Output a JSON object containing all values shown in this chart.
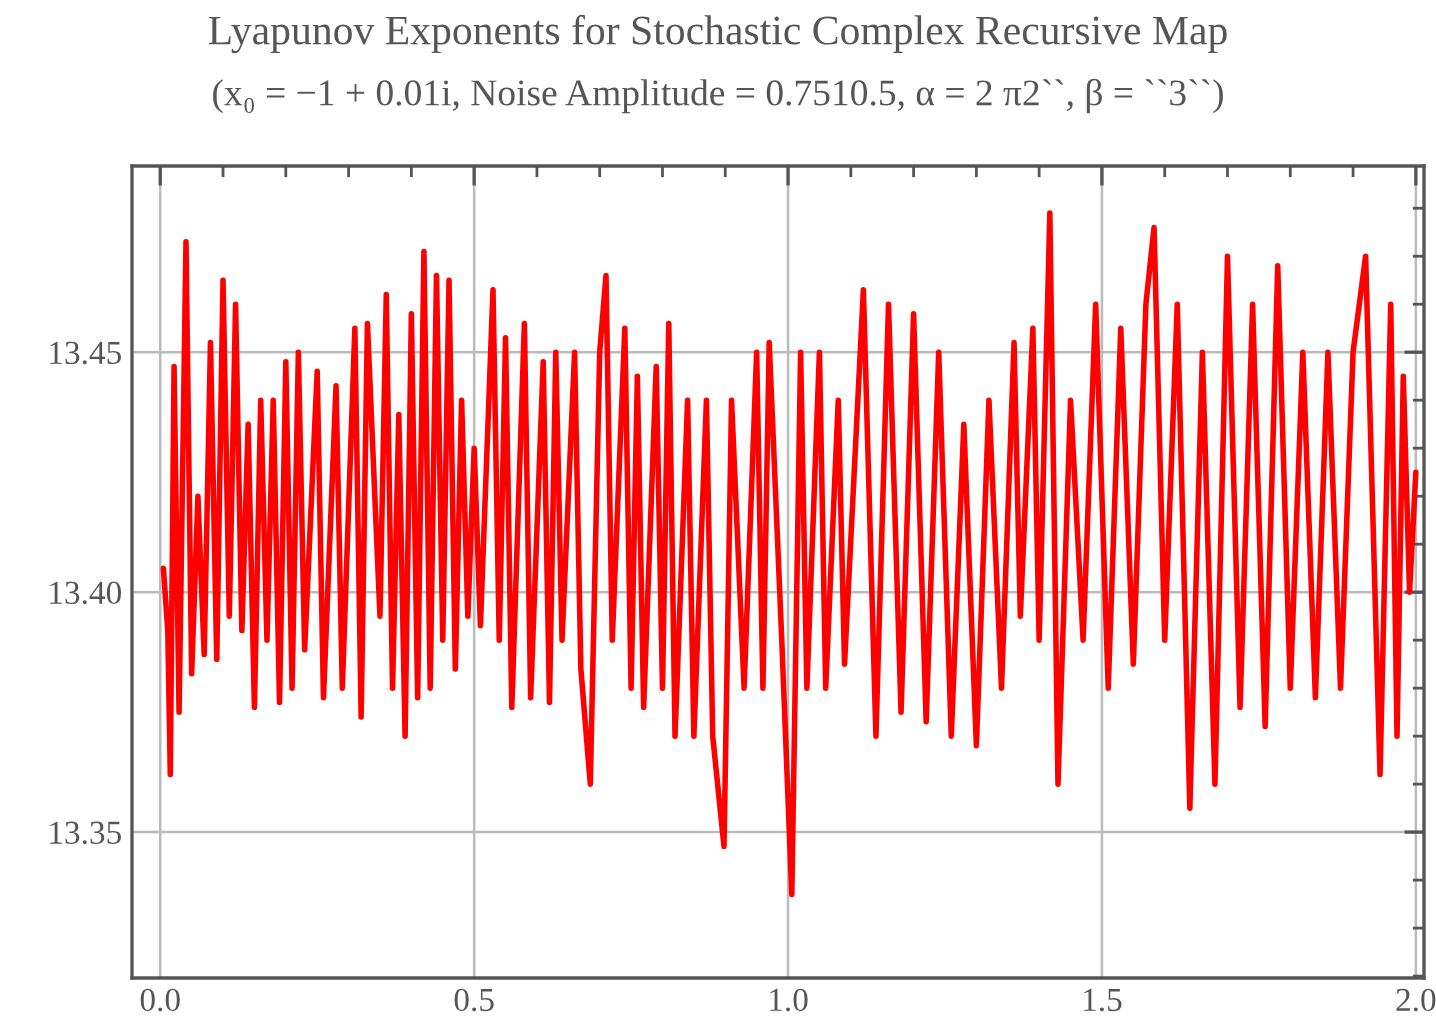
{
  "chart_data": {
    "type": "line",
    "title": "Lyapunov Exponents for Stochastic Complex Recursive Map",
    "subtitle": "(x₀ = −1 + 0.01i, Noise Amplitude = 0.7510.5, α = 2 π2``, β = ``3``)",
    "series": [
      {
        "color": "#ff0000",
        "x": [
          0.005,
          0.012,
          0.016,
          0.022,
          0.03,
          0.041,
          0.05,
          0.06,
          0.07,
          0.08,
          0.09,
          0.1,
          0.11,
          0.12,
          0.13,
          0.14,
          0.15,
          0.16,
          0.17,
          0.18,
          0.19,
          0.2,
          0.21,
          0.22,
          0.23,
          0.25,
          0.26,
          0.28,
          0.29,
          0.31,
          0.32,
          0.33,
          0.35,
          0.36,
          0.37,
          0.38,
          0.39,
          0.4,
          0.41,
          0.42,
          0.43,
          0.44,
          0.45,
          0.46,
          0.47,
          0.48,
          0.49,
          0.5,
          0.51,
          0.53,
          0.54,
          0.55,
          0.56,
          0.58,
          0.59,
          0.61,
          0.62,
          0.63,
          0.64,
          0.66,
          0.67,
          0.685,
          0.7,
          0.71,
          0.72,
          0.74,
          0.75,
          0.76,
          0.77,
          0.79,
          0.8,
          0.81,
          0.82,
          0.84,
          0.85,
          0.87,
          0.88,
          0.898,
          0.91,
          0.93,
          0.95,
          0.96,
          0.97,
          0.99,
          1.006,
          1.02,
          1.03,
          1.05,
          1.06,
          1.08,
          1.09,
          1.12,
          1.14,
          1.16,
          1.18,
          1.2,
          1.22,
          1.24,
          1.26,
          1.28,
          1.3,
          1.32,
          1.34,
          1.36,
          1.37,
          1.39,
          1.4,
          1.417,
          1.43,
          1.45,
          1.47,
          1.49,
          1.51,
          1.53,
          1.55,
          1.57,
          1.583,
          1.6,
          1.62,
          1.64,
          1.66,
          1.68,
          1.7,
          1.72,
          1.74,
          1.76,
          1.78,
          1.8,
          1.82,
          1.84,
          1.86,
          1.88,
          1.9,
          1.92,
          1.943,
          1.96,
          1.97,
          1.98,
          1.99,
          2.0
        ],
        "values": [
          13.405,
          13.392,
          13.362,
          13.447,
          13.375,
          13.473,
          13.383,
          13.42,
          13.387,
          13.452,
          13.386,
          13.465,
          13.395,
          13.46,
          13.392,
          13.435,
          13.376,
          13.44,
          13.39,
          13.44,
          13.377,
          13.448,
          13.38,
          13.45,
          13.388,
          13.446,
          13.378,
          13.443,
          13.38,
          13.455,
          13.374,
          13.456,
          13.395,
          13.462,
          13.38,
          13.437,
          13.37,
          13.458,
          13.378,
          13.471,
          13.38,
          13.466,
          13.39,
          13.465,
          13.384,
          13.44,
          13.395,
          13.43,
          13.393,
          13.463,
          13.39,
          13.453,
          13.376,
          13.456,
          13.378,
          13.448,
          13.377,
          13.45,
          13.39,
          13.45,
          13.384,
          13.36,
          13.45,
          13.466,
          13.39,
          13.455,
          13.38,
          13.445,
          13.376,
          13.447,
          13.38,
          13.456,
          13.37,
          13.44,
          13.37,
          13.44,
          13.37,
          13.347,
          13.44,
          13.38,
          13.45,
          13.38,
          13.452,
          13.39,
          13.337,
          13.45,
          13.38,
          13.45,
          13.38,
          13.44,
          13.385,
          13.463,
          13.37,
          13.46,
          13.375,
          13.458,
          13.373,
          13.45,
          13.37,
          13.435,
          13.368,
          13.44,
          13.38,
          13.452,
          13.395,
          13.455,
          13.39,
          13.479,
          13.36,
          13.44,
          13.39,
          13.46,
          13.38,
          13.455,
          13.385,
          13.46,
          13.476,
          13.39,
          13.46,
          13.355,
          13.45,
          13.36,
          13.47,
          13.376,
          13.46,
          13.372,
          13.468,
          13.38,
          13.45,
          13.378,
          13.45,
          13.38,
          13.45,
          13.47,
          13.362,
          13.46,
          13.37,
          13.445,
          13.4,
          13.425
        ]
      }
    ],
    "xlim": [
      -0.045,
      2.013
    ],
    "ylim": [
      13.3196,
      13.4888
    ],
    "xticks": [
      {
        "value": 0,
        "label": "0.0"
      },
      {
        "value": 0.1,
        "label": null
      },
      {
        "value": 0.2,
        "label": null
      },
      {
        "value": 0.3,
        "label": null
      },
      {
        "value": 0.4,
        "label": null
      },
      {
        "value": 0.5,
        "label": "0.5"
      },
      {
        "value": 0.6,
        "label": null
      },
      {
        "value": 0.7,
        "label": null
      },
      {
        "value": 0.8,
        "label": null
      },
      {
        "value": 0.9,
        "label": null
      },
      {
        "value": 1.0,
        "label": "1.0"
      },
      {
        "value": 1.1,
        "label": null
      },
      {
        "value": 1.2,
        "label": null
      },
      {
        "value": 1.3,
        "label": null
      },
      {
        "value": 1.4,
        "label": null
      },
      {
        "value": 1.5,
        "label": "1.5"
      },
      {
        "value": 1.6,
        "label": null
      },
      {
        "value": 1.7,
        "label": null
      },
      {
        "value": 1.8,
        "label": null
      },
      {
        "value": 1.9,
        "label": null
      },
      {
        "value": 2.0,
        "label": "2.0"
      }
    ],
    "yticks": [
      {
        "value": 13.32,
        "label": null
      },
      {
        "value": 13.33,
        "label": null
      },
      {
        "value": 13.34,
        "label": null
      },
      {
        "value": 13.35,
        "label": "13.35"
      },
      {
        "value": 13.36,
        "label": null
      },
      {
        "value": 13.37,
        "label": null
      },
      {
        "value": 13.38,
        "label": null
      },
      {
        "value": 13.39,
        "label": null
      },
      {
        "value": 13.4,
        "label": "13.40"
      },
      {
        "value": 13.41,
        "label": null
      },
      {
        "value": 13.42,
        "label": null
      },
      {
        "value": 13.43,
        "label": null
      },
      {
        "value": 13.44,
        "label": null
      },
      {
        "value": 13.45,
        "label": "13.45"
      },
      {
        "value": 13.46,
        "label": null
      },
      {
        "value": 13.47,
        "label": null
      },
      {
        "value": 13.48,
        "label": null
      }
    ],
    "grid": true
  }
}
